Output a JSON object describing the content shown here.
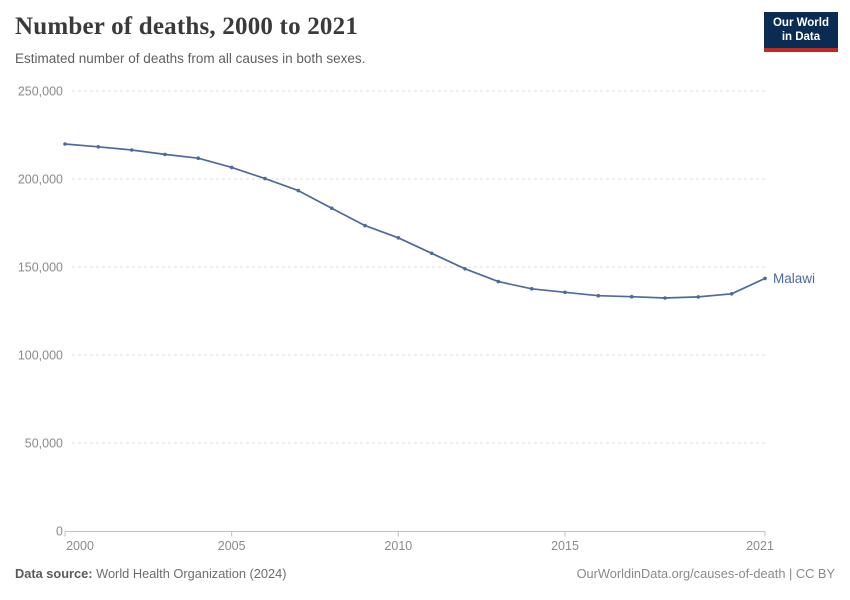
{
  "chart_data": {
    "type": "line",
    "title": "Number of deaths, 2000 to 2021",
    "subtitle": "Estimated number of deaths from all causes in both sexes.",
    "x": [
      2000,
      2001,
      2002,
      2003,
      2004,
      2005,
      2006,
      2007,
      2008,
      2009,
      2010,
      2011,
      2012,
      2013,
      2014,
      2015,
      2016,
      2017,
      2018,
      2019,
      2020,
      2021
    ],
    "series": [
      {
        "name": "Malawi",
        "color": "#4C6A9C",
        "values": [
          219900,
          218300,
          216500,
          214000,
          211800,
          206600,
          200200,
          193400,
          183400,
          173500,
          166600,
          157800,
          149000,
          141700,
          137600,
          135600,
          133700,
          133100,
          132400,
          133000,
          134800,
          143500
        ]
      }
    ],
    "xlabel": "",
    "ylabel": "",
    "ylim": [
      0,
      250000
    ],
    "y_ticks": [
      0,
      50000,
      100000,
      150000,
      200000,
      250000
    ],
    "x_ticks": [
      2000,
      2005,
      2010,
      2015,
      2021
    ],
    "grid": "horizontal-dashed",
    "legend_position": "line-end-label"
  },
  "logo": {
    "line1": "Our World",
    "line2": "in Data"
  },
  "footer": {
    "datasource_label": "Data source:",
    "datasource_value": "World Health Organization (2024)",
    "link": "OurWorldinData.org/causes-of-death | CC BY"
  },
  "colors": {
    "line": "#4C6A9C",
    "navy": "#0A2B52",
    "red": "#C6271D",
    "title": "#3A3A3A",
    "subtitle": "#606060",
    "grid": "#DCDCDC",
    "axis": "#BFBFBF",
    "tick_text": "#8A8A8A"
  }
}
